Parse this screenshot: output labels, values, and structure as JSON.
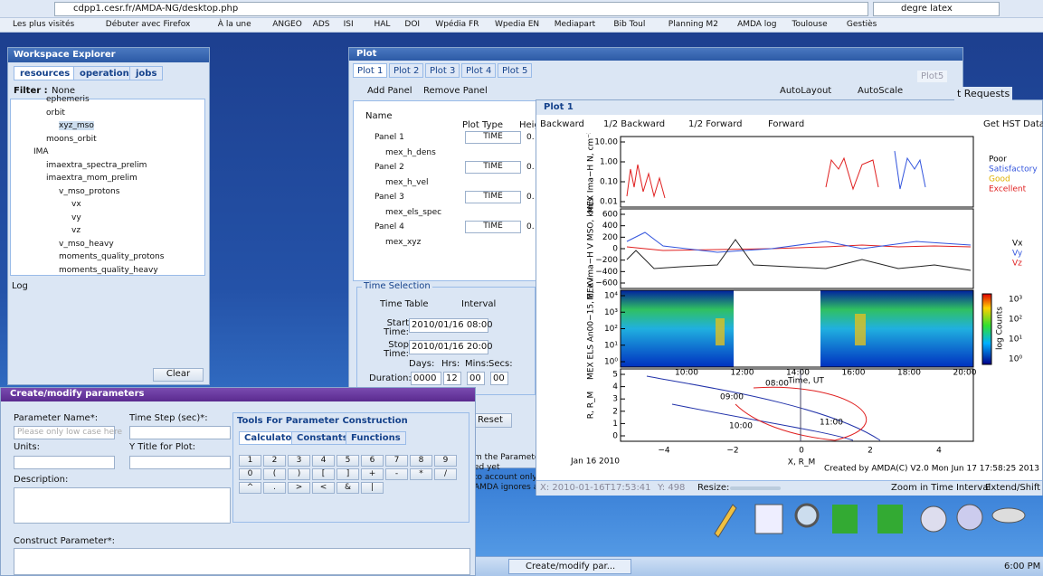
{
  "browser": {
    "url": "cdpp1.cesr.fr/AMDA-NG/desktop.php",
    "search": "degre latex",
    "bookmarks": [
      "Les plus visités",
      "Débuter avec Firefox",
      "À la une",
      "ANGEO",
      "ADS",
      "ISI",
      "HAL",
      "DOI",
      "Wpédia FR",
      "Wpedia EN",
      "Mediapart",
      "Bib Toul",
      "Planning M2",
      "AMDA log",
      "Toulouse",
      "Gestiès"
    ]
  },
  "workspace": {
    "title": "Workspace Explorer",
    "tabs": [
      "resources",
      "operations",
      "jobs"
    ],
    "filter_label": "Filter :",
    "filter_value": "None",
    "tree": [
      "ephemeris",
      "orbit",
      "xyz_mso",
      "moons_orbit",
      "IMA",
      "imaextra_spectra_prelim",
      "imaextra_mom_prelim",
      "v_mso_protons",
      "vx",
      "vy",
      "vz",
      "v_mso_heavy",
      "moments_quality_protons",
      "moments_quality_heavy"
    ],
    "log_title": "Log",
    "clear": "Clear"
  },
  "plot_window": {
    "title": "Plot",
    "tabs": [
      "Plot 1",
      "Plot 2",
      "Plot 3",
      "Plot 4",
      "Plot 5"
    ],
    "add_panel": "Add Panel",
    "remove_panel": "Remove Panel",
    "autolayout": "AutoLayout",
    "autoscale": "AutoScale",
    "columns": [
      "Name",
      "Plot Type",
      "Heig"
    ],
    "rows": [
      {
        "name": "Panel 1",
        "type": "TIME",
        "height": "0."
      },
      {
        "name": "mex_h_dens"
      },
      {
        "name": "Panel 2",
        "type": "TIME",
        "height": "0."
      },
      {
        "name": "mex_h_vel"
      },
      {
        "name": "Panel 3",
        "type": "TIME",
        "height": "0."
      },
      {
        "name": "mex_els_spec"
      },
      {
        "name": "Panel 4",
        "type": "TIME",
        "height": "0."
      },
      {
        "name": "mex_xyz"
      }
    ],
    "time_selection": {
      "title": "Time Selection",
      "time_table": "Time Table",
      "interval": "Interval",
      "start_label": "Start Time:",
      "start": "2010/01/16 08:00",
      "stop_label": "Stop Time:",
      "stop": "2010/01/16 20:00",
      "days": "Days:",
      "hrs": "Hrs:",
      "mins": "Mins:",
      "secs": "Secs:",
      "duration_label": "Duration:",
      "duration": [
        "0000",
        "12",
        "00",
        "00"
      ]
    },
    "reset": "Reset",
    "notes": [
      "m the Paramete",
      "ed yet",
      "to account only",
      "AMDA ignores al"
    ],
    "side": [
      "Plot5",
      "t Requests"
    ]
  },
  "plot1": {
    "title": "Plot 1",
    "nav": [
      "Backward",
      "1/2 Backward",
      "1/2 Forward",
      "Forward"
    ],
    "hst": "Get HST Data ▾",
    "panels": [
      {
        "ylabel": "MEX Ima−H N, cm⁻³",
        "yticks": [
          "10.00",
          "1.00",
          "0.10",
          "0.01"
        ]
      },
      {
        "ylabel": "MEX Ima−H V MSO, km/s",
        "yticks": [
          "600",
          "400",
          "200",
          "0",
          "−200",
          "−400",
          "−600"
        ]
      },
      {
        "ylabel": "MEX ELS An00−15, E, eV",
        "yticks": [
          "10⁴",
          "10³",
          "10²",
          "10¹",
          "10⁰"
        ]
      },
      {
        "ylabel": "R, R_M",
        "yticks": [
          "5",
          "4",
          "3",
          "2",
          "1",
          "0"
        ]
      }
    ],
    "quality_legend": [
      {
        "label": "Poor",
        "color": "#000000"
      },
      {
        "label": "Satisfactory",
        "color": "#3355dd"
      },
      {
        "label": "Good",
        "color": "#e0b000"
      },
      {
        "label": "Excellent",
        "color": "#e02020"
      }
    ],
    "velocity_legend": [
      {
        "label": "Vx",
        "color": "#000000"
      },
      {
        "label": "Vy",
        "color": "#3355dd"
      },
      {
        "label": "Vz",
        "color": "#e02020"
      }
    ],
    "colorbar_label": "log Counts",
    "colorbar_ticks": [
      "10³",
      "10²",
      "10¹",
      "10⁰"
    ],
    "time_ticks": [
      "10:00",
      "12:00",
      "14:00",
      "16:00",
      "18:00",
      "20:00"
    ],
    "time_label": "Time, UT",
    "orbit_xticks": [
      "−4",
      "−2",
      "0",
      "2",
      "4"
    ],
    "orbit_xlabel": "X, R_M",
    "orbit_times": [
      "09:00",
      "08:00",
      "10:00",
      "11:00"
    ],
    "date": "Jan 16 2010",
    "credit": "Created by AMDA(C) V2.0 Mon Jun 17 17:58:25 2013",
    "cursor_x": "X: 2010-01-16T17:53:41",
    "cursor_y": "Y: 498",
    "resize": "Resize:",
    "zoom": "Zoom in Time Interval",
    "extend": "Extend/Shift"
  },
  "create": {
    "title": "Create/modify parameters",
    "name_label": "Parameter Name*:",
    "name_hint": "Please only low case here",
    "step_label": "Time Step (sec)*:",
    "units_label": "Units:",
    "ytitle_label": "Y Title for Plot:",
    "desc_label": "Description:",
    "construct_label": "Construct Parameter*:",
    "tools_title": "Tools For Parameter Construction",
    "tools_tabs": [
      "Calculator",
      "Constants",
      "Functions"
    ],
    "keys": [
      [
        "1",
        "2",
        "3",
        "4",
        "5",
        "6",
        "7",
        "8",
        "9"
      ],
      [
        "0",
        "(",
        ")",
        "[",
        "]",
        "+",
        "-",
        "*",
        "/"
      ],
      [
        "^",
        ".",
        ">",
        "<",
        "&",
        "|"
      ]
    ]
  },
  "taskbar": {
    "task": "Create/modify par...",
    "clock": "6:00 PM"
  }
}
